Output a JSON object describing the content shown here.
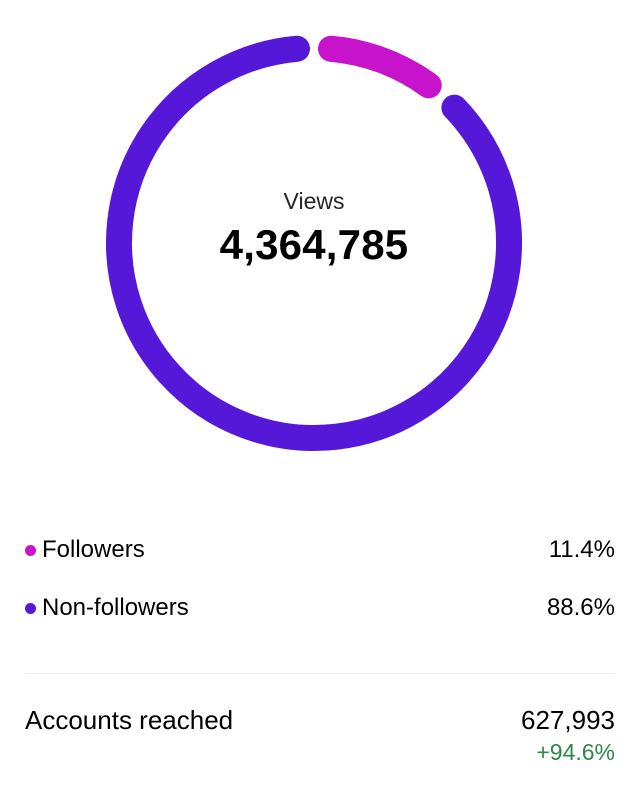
{
  "chart_data": {
    "type": "donut",
    "title": "Views",
    "center_label": "Views",
    "center_value": "4,364,785",
    "categories": [
      "Followers",
      "Non-followers"
    ],
    "series": [
      {
        "name": "Followers",
        "value": 11.4,
        "display": "11.4%",
        "color": "#c713cb"
      },
      {
        "name": "Non-followers",
        "value": 88.6,
        "display": "88.6%",
        "color": "#5618d8"
      }
    ],
    "start_angle_deg": 0,
    "pad_angle_deg": 5,
    "stroke_width": 26,
    "legend_position": "below",
    "grid": false
  },
  "summary": {
    "label": "Accounts reached",
    "value": "627,993",
    "delta": "+94.6%",
    "delta_color": "#2d874b"
  }
}
